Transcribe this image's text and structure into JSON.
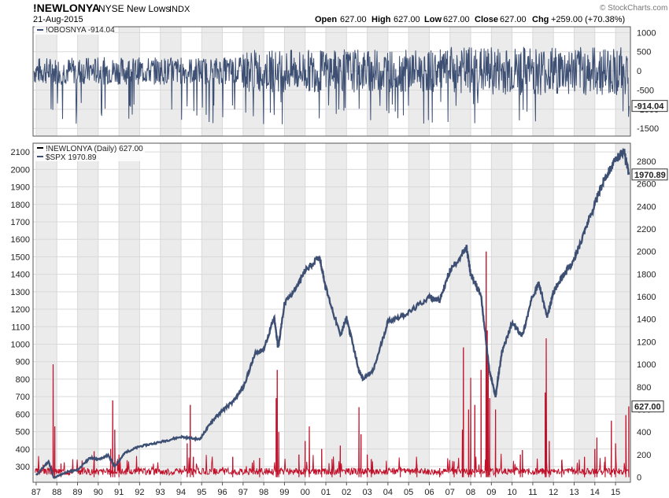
{
  "header": {
    "symbol": "!NEWLONYA",
    "name": "NYSE New Lows",
    "exchange": "INDX",
    "date": "21-Aug-2015",
    "watermark": "© StockCharts.com",
    "open_label": "Open",
    "open_value": "627.00",
    "high_label": "High",
    "high_value": "627.00",
    "low_label": "Low",
    "low_value": "627.00",
    "close_label": "Close",
    "close_value": "627.00",
    "chg_label": "Chg",
    "chg_value": "+259.00 (+70.38%)"
  },
  "colors": {
    "navy": "#3d4f73",
    "red": "#c0102a",
    "shade": "#ebebeb",
    "grid": "#d9d9d9",
    "frame": "#555555"
  },
  "chart_data": [
    {
      "type": "line",
      "legend": [
        "!OBOSNYA -914.04"
      ],
      "series": [
        {
          "name": "!OBOSNYA",
          "last_value": -914.04,
          "range_approx": [
            -1550,
            1050
          ],
          "mean_approx": 0
        }
      ],
      "ylim": [
        -1700,
        1150
      ],
      "yticks": [
        1000,
        500,
        0,
        -500,
        -1000,
        -1500
      ],
      "ytick_labels": [
        "1000",
        "500",
        "0",
        "-500",
        "-1000",
        "-1500"
      ],
      "last_label": "-914.04"
    },
    {
      "type": "line",
      "legend": [
        "!NEWLONYA (Daily) 627.00",
        "$SPX 1970.89"
      ],
      "x_tick_labels": [
        "87",
        "88",
        "89",
        "90",
        "91",
        "92",
        "93",
        "94",
        "95",
        "96",
        "97",
        "98",
        "99",
        "00",
        "01",
        "02",
        "03",
        "04",
        "05",
        "06",
        "07",
        "08",
        "09",
        "10",
        "11",
        "12",
        "13",
        "14",
        "15"
      ],
      "x_years": [
        1987,
        1988,
        1989,
        1990,
        1991,
        1992,
        1993,
        1994,
        1995,
        1996,
        1997,
        1998,
        1999,
        2000,
        2001,
        2002,
        2003,
        2004,
        2005,
        2006,
        2007,
        2008,
        2009,
        2010,
        2011,
        2012,
        2013,
        2014,
        2015
      ],
      "left_axis": {
        "ticks": [
          300,
          400,
          500,
          600,
          700,
          800,
          900,
          1000,
          1100,
          1200,
          1300,
          1400,
          1500,
          1600,
          1700,
          1800,
          1900,
          2000,
          2100
        ],
        "ylim": [
          210,
          2150
        ]
      },
      "right_axis": {
        "ticks": [
          0,
          200,
          400,
          600,
          800,
          1000,
          1200,
          1400,
          1600,
          1800,
          2000,
          2200,
          2400,
          2600,
          2800
        ],
        "ylim": [
          -45,
          2960
        ]
      },
      "series": [
        {
          "name": "$SPX",
          "axis": "left",
          "last_value": 1970.89,
          "last_label": "1970.89",
          "points": [
            [
              1987.0,
              250
            ],
            [
              1987.6,
              330
            ],
            [
              1987.85,
              235
            ],
            [
              1988.5,
              270
            ],
            [
              1989.0,
              280
            ],
            [
              1989.6,
              350
            ],
            [
              1990.0,
              340
            ],
            [
              1990.5,
              365
            ],
            [
              1990.8,
              300
            ],
            [
              1991.3,
              380
            ],
            [
              1992.0,
              415
            ],
            [
              1993.0,
              440
            ],
            [
              1994.0,
              470
            ],
            [
              1994.9,
              455
            ],
            [
              1995.5,
              560
            ],
            [
              1996.0,
              620
            ],
            [
              1996.5,
              670
            ],
            [
              1997.0,
              750
            ],
            [
              1997.6,
              950
            ],
            [
              1998.0,
              970
            ],
            [
              1998.5,
              1150
            ],
            [
              1998.7,
              980
            ],
            [
              1999.0,
              1230
            ],
            [
              1999.6,
              1330
            ],
            [
              2000.0,
              1420
            ],
            [
              2000.7,
              1500
            ],
            [
              2001.0,
              1320
            ],
            [
              2001.7,
              1050
            ],
            [
              2002.0,
              1150
            ],
            [
              2002.6,
              850
            ],
            [
              2002.8,
              800
            ],
            [
              2003.3,
              850
            ],
            [
              2004.0,
              1130
            ],
            [
              2005.0,
              1180
            ],
            [
              2006.0,
              1270
            ],
            [
              2006.5,
              1250
            ],
            [
              2007.0,
              1420
            ],
            [
              2007.8,
              1550
            ],
            [
              2008.0,
              1400
            ],
            [
              2008.5,
              1280
            ],
            [
              2008.9,
              850
            ],
            [
              2009.2,
              700
            ],
            [
              2009.5,
              950
            ],
            [
              2010.0,
              1120
            ],
            [
              2010.5,
              1050
            ],
            [
              2011.0,
              1280
            ],
            [
              2011.3,
              1350
            ],
            [
              2011.7,
              1150
            ],
            [
              2012.0,
              1300
            ],
            [
              2012.5,
              1400
            ],
            [
              2013.0,
              1480
            ],
            [
              2013.5,
              1650
            ],
            [
              2014.0,
              1800
            ],
            [
              2014.5,
              1960
            ],
            [
              2015.0,
              2050
            ],
            [
              2015.4,
              2110
            ],
            [
              2015.64,
              1970.89
            ]
          ]
        },
        {
          "name": "!NEWLONYA",
          "axis": "right",
          "last_value": 627.0,
          "last_label": "627.00",
          "base_level": 20,
          "spikes": [
            [
              1987.82,
              1000
            ],
            [
              1987.9,
              450
            ],
            [
              1988.2,
              120
            ],
            [
              1989.8,
              230
            ],
            [
              1990.6,
              250
            ],
            [
              1990.7,
              680
            ],
            [
              1990.8,
              420
            ],
            [
              1991.0,
              200
            ],
            [
              1994.3,
              300
            ],
            [
              1994.45,
              640
            ],
            [
              1994.6,
              180
            ],
            [
              1996.5,
              180
            ],
            [
              1997.8,
              170
            ],
            [
              1998.6,
              700
            ],
            [
              1998.65,
              950
            ],
            [
              1998.72,
              400
            ],
            [
              1999.7,
              200
            ],
            [
              2000.0,
              320
            ],
            [
              2000.2,
              450
            ],
            [
              2000.8,
              250
            ],
            [
              2001.3,
              160
            ],
            [
              2001.7,
              280
            ],
            [
              2002.6,
              620
            ],
            [
              2002.7,
              380
            ],
            [
              2003.0,
              200
            ],
            [
              2003.2,
              160
            ],
            [
              2004.6,
              90
            ],
            [
              2005.4,
              110
            ],
            [
              2006.5,
              80
            ],
            [
              2007.2,
              140
            ],
            [
              2007.6,
              420
            ],
            [
              2007.65,
              1150
            ],
            [
              2007.9,
              600
            ],
            [
              2008.0,
              880
            ],
            [
              2008.2,
              640
            ],
            [
              2008.5,
              950
            ],
            [
              2008.75,
              2000
            ],
            [
              2008.8,
              1300
            ],
            [
              2008.85,
              1000
            ],
            [
              2008.92,
              700
            ],
            [
              2009.2,
              600
            ],
            [
              2010.4,
              200
            ],
            [
              2010.5,
              240
            ],
            [
              2011.6,
              750
            ],
            [
              2011.65,
              1230
            ],
            [
              2011.8,
              320
            ],
            [
              2012.4,
              150
            ],
            [
              2013.5,
              180
            ],
            [
              2014.0,
              250
            ],
            [
              2014.1,
              350
            ],
            [
              2014.5,
              180
            ],
            [
              2014.8,
              500
            ],
            [
              2015.0,
              300
            ],
            [
              2015.5,
              550
            ],
            [
              2015.64,
              627
            ]
          ]
        }
      ]
    }
  ]
}
